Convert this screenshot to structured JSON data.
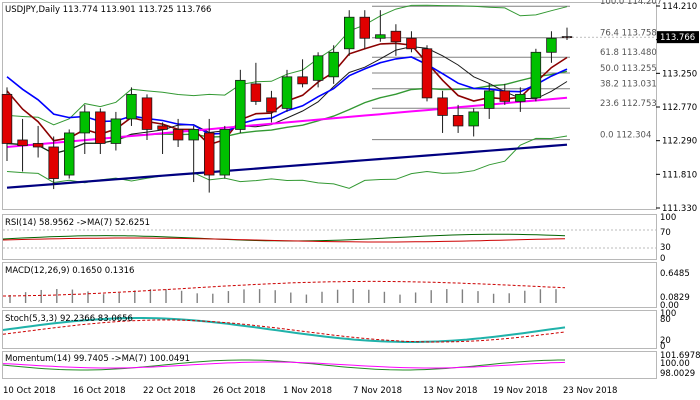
{
  "main_header": "USDJPY,Daily  113.774 113.901 113.725 113.766",
  "panels": [
    {
      "id": "rsi",
      "label": "RSI(14) 58.9562  ->MA(7) 52.6251",
      "ticks": [
        "100",
        "70",
        "30",
        "0"
      ]
    },
    {
      "id": "macd",
      "label": "MACD(12,26,9) 0.1650 0.1316",
      "ticks": [
        "0.6485",
        "0.0829",
        "0.00"
      ]
    },
    {
      "id": "stoch",
      "label": "Stoch(5,3,3) 92.2366 83.0656",
      "ticks": [
        "100",
        "80",
        "20",
        "0"
      ]
    },
    {
      "id": "momentum",
      "label": "Momentum(14) 99.7405  ->MA(7) 100.0491",
      "ticks": [
        "101.6978",
        "100.00",
        "98.0029"
      ]
    }
  ],
  "colors": {
    "bull": "#00c000",
    "bear": "#e00000",
    "outline": "#1a1a1a",
    "ma_black": "#1a1a1a",
    "ma_red": "#8b0000",
    "ma_blue": "#0000ff",
    "ma_magenta": "#ff00ff",
    "ma_navy": "#000080",
    "bb": "#339933",
    "fib": "#808080",
    "rsi": "#006400",
    "signal": "#cc0000",
    "stoch": "#20b2aa",
    "mom": "#228b22",
    "mom_ma": "#ff00ff",
    "macd_hist": "#808080",
    "current_tag": "#000000"
  },
  "chart_data": {
    "type": "candlestick",
    "title": "USDJPY,Daily",
    "ohlc_header": {
      "open": 113.774,
      "high": 113.901,
      "low": 113.725,
      "close": 113.766
    },
    "y_ticks": [
      114.21,
      113.73,
      113.25,
      112.77,
      112.29,
      111.81,
      111.33
    ],
    "ylim": [
      111.33,
      114.21
    ],
    "current_price": "113.766",
    "x_labels": [
      "10 Oct 2018",
      "16 Oct 2018",
      "22 Oct 2018",
      "26 Oct 2018",
      "1 Nov 2018",
      "7 Nov 2018",
      "13 Nov 2018",
      "19 Nov 2018",
      "23 Nov 2018"
    ],
    "fibonacci": [
      {
        "level": "100.0",
        "price": 114.207
      },
      {
        "level": "76.4",
        "price": 113.758
      },
      {
        "level": "61.8",
        "price": 113.48
      },
      {
        "level": "50.0",
        "price": 113.255
      },
      {
        "level": "38.2",
        "price": 113.031
      },
      {
        "level": "23.6",
        "price": 112.753
      },
      {
        "level": "0.0",
        "price": 112.304
      }
    ],
    "candles": [
      {
        "o": 112.95,
        "h": 113.05,
        "l": 112.0,
        "c": 112.25
      },
      {
        "o": 112.3,
        "h": 112.6,
        "l": 111.85,
        "c": 112.22
      },
      {
        "o": 112.25,
        "h": 112.5,
        "l": 112.05,
        "c": 112.2
      },
      {
        "o": 112.2,
        "h": 112.35,
        "l": 111.6,
        "c": 111.75
      },
      {
        "o": 111.8,
        "h": 112.45,
        "l": 111.75,
        "c": 112.4
      },
      {
        "o": 112.4,
        "h": 112.8,
        "l": 112.1,
        "c": 112.7
      },
      {
        "o": 112.7,
        "h": 112.75,
        "l": 112.1,
        "c": 112.25
      },
      {
        "o": 112.25,
        "h": 112.7,
        "l": 112.15,
        "c": 112.6
      },
      {
        "o": 112.6,
        "h": 113.05,
        "l": 112.5,
        "c": 112.95
      },
      {
        "o": 112.9,
        "h": 112.95,
        "l": 112.3,
        "c": 112.45
      },
      {
        "o": 112.5,
        "h": 112.55,
        "l": 112.1,
        "c": 112.45
      },
      {
        "o": 112.45,
        "h": 112.6,
        "l": 112.2,
        "c": 112.3
      },
      {
        "o": 112.3,
        "h": 112.5,
        "l": 111.7,
        "c": 112.45
      },
      {
        "o": 112.4,
        "h": 112.6,
        "l": 111.55,
        "c": 111.8
      },
      {
        "o": 111.8,
        "h": 112.5,
        "l": 111.75,
        "c": 112.45
      },
      {
        "o": 112.45,
        "h": 113.3,
        "l": 112.4,
        "c": 113.15
      },
      {
        "o": 113.1,
        "h": 113.4,
        "l": 112.8,
        "c": 112.85
      },
      {
        "o": 112.9,
        "h": 113.0,
        "l": 112.55,
        "c": 112.7
      },
      {
        "o": 112.75,
        "h": 113.3,
        "l": 112.7,
        "c": 113.2
      },
      {
        "o": 113.2,
        "h": 113.45,
        "l": 113.05,
        "c": 113.1
      },
      {
        "o": 113.15,
        "h": 113.55,
        "l": 113.05,
        "c": 113.5
      },
      {
        "o": 113.2,
        "h": 113.65,
        "l": 113.1,
        "c": 113.55
      },
      {
        "o": 113.6,
        "h": 114.15,
        "l": 113.5,
        "c": 114.05
      },
      {
        "o": 114.05,
        "h": 114.15,
        "l": 113.6,
        "c": 113.75
      },
      {
        "o": 113.75,
        "h": 114.15,
        "l": 113.7,
        "c": 113.8
      },
      {
        "o": 113.85,
        "h": 113.95,
        "l": 113.5,
        "c": 113.7
      },
      {
        "o": 113.75,
        "h": 113.85,
        "l": 113.55,
        "c": 113.6
      },
      {
        "o": 113.6,
        "h": 113.65,
        "l": 112.85,
        "c": 112.9
      },
      {
        "o": 112.9,
        "h": 113.0,
        "l": 112.4,
        "c": 112.65
      },
      {
        "o": 112.65,
        "h": 112.8,
        "l": 112.4,
        "c": 112.5
      },
      {
        "o": 112.5,
        "h": 112.75,
        "l": 112.35,
        "c": 112.7
      },
      {
        "o": 112.75,
        "h": 113.1,
        "l": 112.6,
        "c": 113.0
      },
      {
        "o": 113.0,
        "h": 113.1,
        "l": 112.8,
        "c": 112.85
      },
      {
        "o": 112.85,
        "h": 113.05,
        "l": 112.7,
        "c": 112.95
      },
      {
        "o": 112.9,
        "h": 113.6,
        "l": 112.85,
        "c": 113.55
      },
      {
        "o": 113.55,
        "h": 113.85,
        "l": 113.4,
        "c": 113.75
      },
      {
        "o": 113.774,
        "h": 113.901,
        "l": 113.725,
        "c": 113.766
      }
    ]
  }
}
